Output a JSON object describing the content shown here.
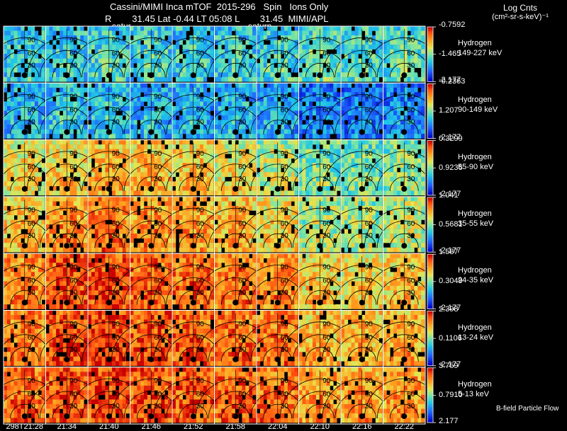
{
  "header": {
    "title_line": "Cassini/MIMI Inca mTOF  2015-296   Spin   Ions Only",
    "info_line": "R        31.45 Lat -0.44 LT 05:08 L        31.45  MIMI/APL",
    "saturn_labels": [
      "satur",
      "saturn"
    ]
  },
  "colorbar_title": {
    "line1": "Log Cnts",
    "line2": "(cm²-sr-s-keV)⁻¹"
  },
  "footer": {
    "flow_label": "B-field Particle Flow",
    "time_labels": [
      "298T21:28",
      "21:34",
      "21:40",
      "21:46",
      "21:52",
      "21:58",
      "22:04",
      "22:10",
      "22:16",
      "22:22"
    ]
  },
  "chart_data": {
    "type": "heatmap",
    "title": "Cassini/MIMI Inca mTOF  2015-296   Spin   Ions Only",
    "columns": 10,
    "polar_contour_labels": [
      "30",
      "60",
      "90"
    ],
    "channels": [
      {
        "species": "Hydrogen",
        "energy": "149-227 keV",
        "cmax": "-0.7592",
        "cmid": "-1.465",
        "cmin": "-2.177",
        "level": [
          0.35,
          0.35,
          0.38,
          0.38,
          0.36,
          0.36,
          0.38,
          0.42,
          0.4,
          0.42
        ]
      },
      {
        "species": "Hydrogen",
        "energy": "90-149 keV",
        "cmax": "-0.2363",
        "cmid": "1.207",
        "cmin": "-2.177",
        "level": [
          0.3,
          0.33,
          0.33,
          0.3,
          0.3,
          0.3,
          0.28,
          0.2,
          0.2,
          0.22
        ]
      },
      {
        "species": "Hydrogen",
        "energy": "55-90 keV",
        "cmax": "0.3299",
        "cmid": "0.9236",
        "cmin": "-2.177",
        "level": [
          0.62,
          0.65,
          0.7,
          0.68,
          0.66,
          0.6,
          0.55,
          0.45,
          0.45,
          0.48
        ]
      },
      {
        "species": "Hydrogen",
        "energy": "35-55 keV",
        "cmax": "1.041",
        "cmid": "0.5681",
        "cmin": "-2.177",
        "level": [
          0.68,
          0.76,
          0.8,
          0.76,
          0.74,
          0.7,
          0.64,
          0.52,
          0.52,
          0.55
        ]
      },
      {
        "species": "Hydrogen",
        "energy": "24-35 keV",
        "cmax": "1.587",
        "cmid": "0.3049",
        "cmin": "-2.177",
        "level": [
          0.78,
          0.86,
          0.88,
          0.84,
          0.82,
          0.8,
          0.76,
          0.66,
          0.64,
          0.66
        ]
      },
      {
        "species": "Hydrogen",
        "energy": "13-24 keV",
        "cmax": "2.398",
        "cmid": "0.1106",
        "cmin": "-2.177",
        "level": [
          0.8,
          0.88,
          0.9,
          0.86,
          0.84,
          0.82,
          0.8,
          0.7,
          0.7,
          0.72
        ]
      },
      {
        "species": "Hydrogen",
        "energy": "5-13 keV",
        "cmax": "3.759",
        "cmid": "0.7910",
        "cmin": "2.177",
        "level": [
          0.82,
          0.86,
          0.88,
          0.86,
          0.85,
          0.84,
          0.82,
          0.75,
          0.74,
          0.76
        ]
      }
    ]
  }
}
